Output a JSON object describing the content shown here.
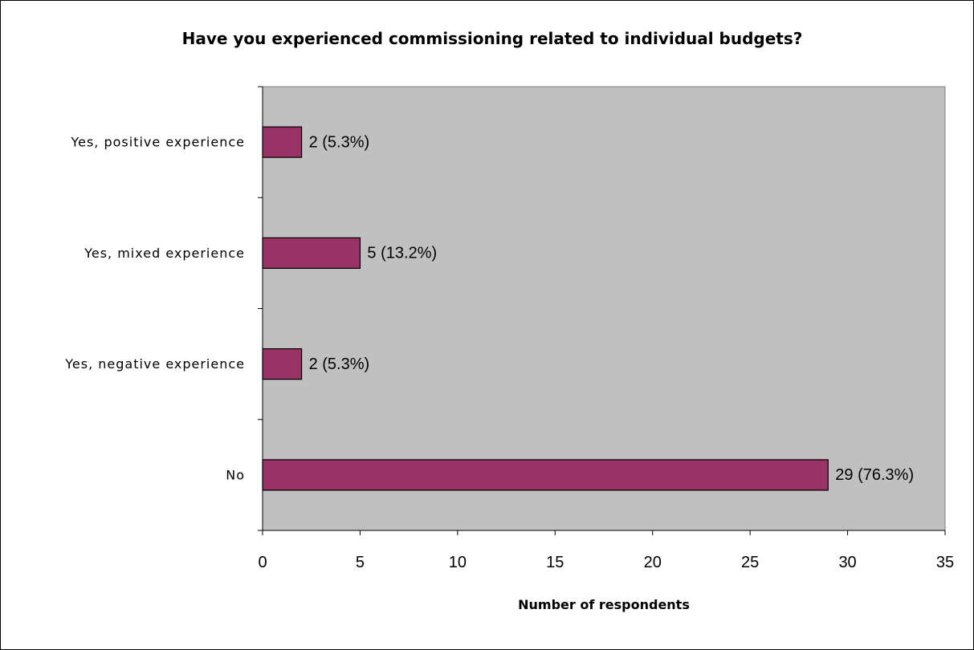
{
  "chart_data": {
    "type": "bar",
    "orientation": "horizontal",
    "title": "Have you experienced commissioning related to individual budgets?",
    "xlabel": "Number of respondents",
    "ylabel": "",
    "categories": [
      "Yes, positive experience",
      "Yes, mixed experience",
      "Yes, negative experience",
      "No"
    ],
    "values": [
      2,
      5,
      2,
      29
    ],
    "data_labels": [
      "2 (5.3%)",
      "5 (13.2%)",
      "2 (5.3%)",
      "29 (76.3%)"
    ],
    "xlim": [
      0,
      35
    ],
    "xticks": [
      "0",
      "5",
      "10",
      "15",
      "20",
      "25",
      "30",
      "35"
    ],
    "grid": false,
    "legend": "none",
    "colors": {
      "bar": "#993366",
      "plot_background": "#c0c0c0",
      "chart_background": "#ffffff"
    }
  }
}
